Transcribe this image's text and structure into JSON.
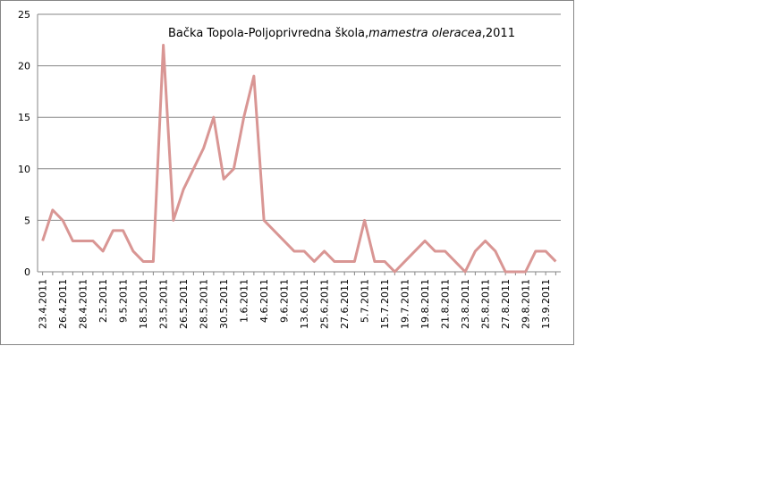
{
  "chart_data": {
    "type": "line",
    "title": [
      "Bačka Topola-Poljoprivredna škola,",
      "mamestra oleracea",
      ",2011"
    ],
    "categories": [
      "23.4.2011",
      null,
      "26.4.2011",
      null,
      "28.4.2011",
      null,
      "2.5.2011",
      null,
      "9.5.2011",
      null,
      "18.5.2011",
      null,
      "23.5.2011",
      null,
      "26.5.2011",
      null,
      "28.5.2011",
      null,
      "30.5.2011",
      null,
      "1.6.2011",
      null,
      "4.6.2011",
      null,
      "9.6.2011",
      null,
      "13.6.2011",
      null,
      "25.6.2011",
      null,
      "27.6.2011",
      null,
      "5.7.2011",
      null,
      "15.7.2011",
      null,
      "19.7.2011",
      null,
      "19.8.2011",
      null,
      "21.8.2011",
      null,
      "23.8.2011",
      null,
      "25.8.2011",
      null,
      "27.8.2011",
      null,
      "29.8.2011",
      null,
      "13.9.2011",
      null
    ],
    "values": [
      3,
      6,
      5,
      3,
      3,
      3,
      2,
      4,
      4,
      2,
      1,
      1,
      22,
      5,
      8,
      10,
      12,
      15,
      9,
      10,
      15,
      19,
      5,
      4,
      3,
      2,
      2,
      1,
      2,
      1,
      1,
      1,
      5,
      1,
      1,
      0,
      1,
      2,
      3,
      2,
      2,
      1,
      0,
      2,
      3,
      2,
      0,
      0,
      0,
      2,
      2,
      1
    ],
    "color": "#d99694",
    "ylim": [
      0,
      25
    ],
    "yticks": [
      0,
      5,
      10,
      15,
      20,
      25
    ],
    "grid": true
  }
}
